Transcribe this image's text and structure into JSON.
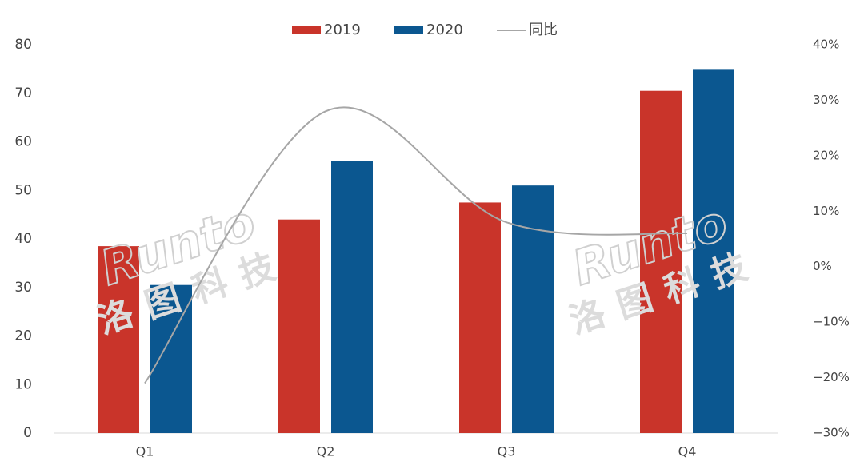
{
  "chart_data": {
    "type": "bar",
    "watermark": "Runto",
    "watermark_cn": "洛图科技",
    "categories": [
      "Q1",
      "Q2",
      "Q3",
      "Q4"
    ],
    "series": [
      {
        "name": "2019",
        "color": "#c9342a",
        "values": [
          38.5,
          44,
          47.5,
          70.5
        ]
      },
      {
        "name": "2020",
        "color": "#0b5790",
        "values": [
          30.5,
          56,
          51,
          75
        ]
      },
      {
        "name": "同比",
        "color": "#a6a6a6",
        "type": "line",
        "axis": "y2",
        "values": [
          -21,
          28,
          8,
          6
        ]
      }
    ],
    "ylim": [
      0,
      80
    ],
    "yticks": [
      0,
      10,
      20,
      30,
      40,
      50,
      60,
      70,
      80
    ],
    "y2lim": [
      -30,
      40
    ],
    "y2ticks": [
      {
        "value": -30,
        "label": "−30%"
      },
      {
        "value": -20,
        "label": "−20%"
      },
      {
        "value": -10,
        "label": "−10%"
      },
      {
        "value": 0,
        "label": "0%"
      },
      {
        "value": 10,
        "label": "10%"
      },
      {
        "value": 20,
        "label": "20%"
      },
      {
        "value": 30,
        "label": "30%"
      },
      {
        "value": 40,
        "label": "40%"
      }
    ],
    "legend": "top",
    "grid": false
  }
}
